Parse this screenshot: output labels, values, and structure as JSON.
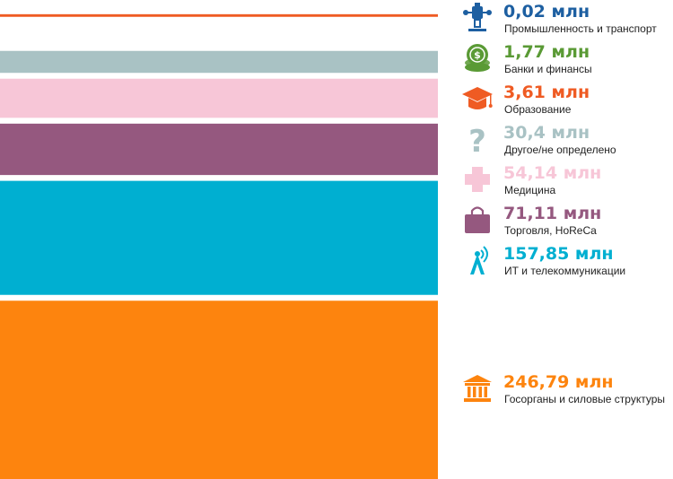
{
  "chart_data": {
    "type": "bar",
    "orientation": "horizontal-stacked",
    "unit": "млн",
    "categories": [
      "Промышленность и транспорт",
      "Банки и финансы",
      "Образование",
      "Другое/не определено",
      "Медицина",
      "Торговля, HoReCa",
      "ИТ и телекоммуникации",
      "Госорганы и силовые структуры"
    ],
    "values": [
      0.02,
      1.77,
      3.61,
      30.4,
      54.14,
      71.11,
      157.85,
      246.79
    ],
    "labels": [
      "0,02 млн",
      "1,77 млн",
      "3,61 млн",
      "30,4 млн",
      "54,14 млн",
      "71,11 млн",
      "157,85 млн",
      "246,79 млн"
    ],
    "colors": [
      "#1d5fa1",
      "#5a9a35",
      "#ef5b23",
      "#a9c2c4",
      "#f7c6d7",
      "#95587f",
      "#00afd1",
      "#fd840e"
    ],
    "icons": [
      "conveyor-robot-icon",
      "coins-icon",
      "graduation-cap-icon",
      "question-mark-icon",
      "medical-cross-icon",
      "shopping-bag-icon",
      "antenna-tower-icon",
      "government-building-icon"
    ],
    "xlabel": "",
    "ylabel": "",
    "grid": false,
    "legend": "right"
  }
}
